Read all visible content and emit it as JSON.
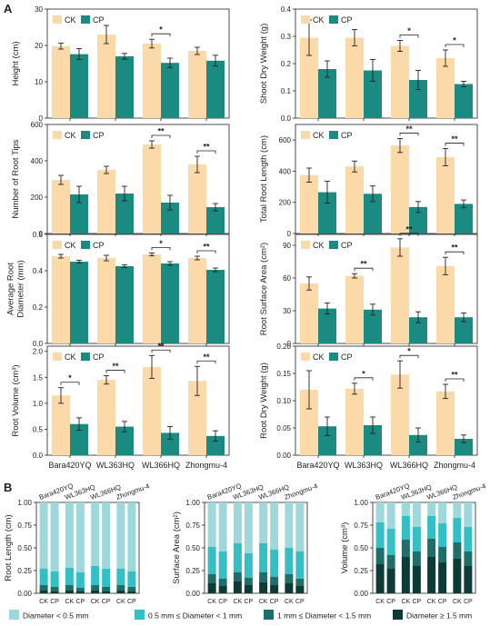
{
  "colors": {
    "ck": "#FCD9A8",
    "cp": "#1B8A80",
    "frame": "#222222",
    "d1": "#9ED8DA",
    "d2": "#34BFC4",
    "d3": "#1F6F68",
    "d4": "#0E3B35"
  },
  "panel_labels": {
    "a": "A",
    "b": "B"
  },
  "legend_text": {
    "ck": "CK",
    "cp": "CP"
  },
  "chart_data": [
    {
      "id": "height",
      "type": "bar",
      "ylabel": "Height (cm)",
      "ylim": [
        0,
        30
      ],
      "yticks": [
        0,
        10,
        20,
        30
      ],
      "categories": [
        "Bara420YQ",
        "WL363HQ",
        "WL366HQ",
        "Zhongmu-4"
      ],
      "show_xticks": false,
      "series": [
        {
          "name": "CK",
          "values": [
            19.8,
            23.0,
            20.5,
            18.5
          ],
          "err": [
            0.8,
            2.5,
            1.2,
            1.0
          ]
        },
        {
          "name": "CP",
          "values": [
            17.6,
            17.0,
            15.2,
            15.8
          ],
          "err": [
            1.5,
            0.8,
            1.3,
            1.5
          ]
        }
      ],
      "annotations": [
        {
          "category": "WL366HQ",
          "text": "*"
        }
      ]
    },
    {
      "id": "shoot-dry-weight",
      "type": "bar",
      "ylabel": "Shoot Dry Weight (g)",
      "ylim": [
        0,
        0.4
      ],
      "yticks": [
        0.0,
        0.1,
        0.2,
        0.3,
        0.4
      ],
      "ytick_decimals": 1,
      "categories": [
        "Bara420YQ",
        "WL363HQ",
        "WL366HQ",
        "Zhongmu-4"
      ],
      "show_xticks": false,
      "series": [
        {
          "name": "CK",
          "values": [
            0.295,
            0.295,
            0.265,
            0.22
          ],
          "err": [
            0.065,
            0.03,
            0.02,
            0.03
          ]
        },
        {
          "name": "CP",
          "values": [
            0.18,
            0.175,
            0.14,
            0.125
          ],
          "err": [
            0.03,
            0.04,
            0.035,
            0.01
          ]
        }
      ],
      "annotations": [
        {
          "category": "WL366HQ",
          "text": "*"
        },
        {
          "category": "Zhongmu-4",
          "text": "*"
        }
      ]
    },
    {
      "id": "number-of-root-tips",
      "type": "bar",
      "ylabel": "Number of Root Tips",
      "ylim": [
        0,
        600
      ],
      "yticks": [
        0,
        200,
        400,
        600
      ],
      "categories": [
        "Bara420YQ",
        "WL363HQ",
        "WL366HQ",
        "Zhongmu-4"
      ],
      "show_xticks": false,
      "series": [
        {
          "name": "CK",
          "values": [
            295,
            350,
            490,
            380
          ],
          "err": [
            25,
            20,
            20,
            45
          ]
        },
        {
          "name": "CP",
          "values": [
            215,
            220,
            170,
            145
          ],
          "err": [
            45,
            40,
            40,
            20
          ]
        }
      ],
      "annotations": [
        {
          "category": "WL366HQ",
          "text": "**"
        },
        {
          "category": "Zhongmu-4",
          "text": "**"
        }
      ]
    },
    {
      "id": "total-root-length",
      "type": "bar",
      "ylabel": "Total Root Length (cm)",
      "ylim": [
        0,
        700
      ],
      "yticks": [
        0,
        200,
        400,
        600
      ],
      "categories": [
        "Bara420YQ",
        "WL363HQ",
        "WL366HQ",
        "Zhongmu-4"
      ],
      "show_xticks": false,
      "series": [
        {
          "name": "CK",
          "values": [
            375,
            430,
            565,
            490
          ],
          "err": [
            45,
            35,
            45,
            55
          ]
        },
        {
          "name": "CP",
          "values": [
            265,
            255,
            170,
            190
          ],
          "err": [
            70,
            50,
            35,
            25
          ]
        }
      ],
      "annotations": [
        {
          "category": "WL366HQ",
          "text": "**"
        },
        {
          "category": "Zhongmu-4",
          "text": "**"
        }
      ]
    },
    {
      "id": "average-root-diameter",
      "type": "bar",
      "ylabel": [
        "Average Root",
        "Diameter (mm)"
      ],
      "ylim": [
        0,
        0.6
      ],
      "yticks": [
        0.0,
        0.2,
        0.4,
        0.6
      ],
      "ytick_decimals": 1,
      "categories": [
        "Bara420YQ",
        "WL363HQ",
        "WL366HQ",
        "Zhongmu-4"
      ],
      "show_xticks": false,
      "series": [
        {
          "name": "CK",
          "values": [
            0.48,
            0.47,
            0.49,
            0.47
          ],
          "err": [
            0.01,
            0.015,
            0.008,
            0.01
          ]
        },
        {
          "name": "CP",
          "values": [
            0.45,
            0.425,
            0.44,
            0.405
          ],
          "err": [
            0.008,
            0.008,
            0.01,
            0.01
          ]
        }
      ],
      "annotations": [
        {
          "category": "WL366HQ",
          "text": "*"
        },
        {
          "category": "Zhongmu-4",
          "text": "**"
        }
      ]
    },
    {
      "id": "root-surface-area",
      "type": "bar",
      "ylabel": "Root Surface Area (cm²)",
      "ylim": [
        0,
        100
      ],
      "yticks": [
        0,
        30,
        60,
        90
      ],
      "categories": [
        "Bara420YQ",
        "WL363HQ",
        "WL366HQ",
        "Zhongmu-4"
      ],
      "show_xticks": false,
      "series": [
        {
          "name": "CK",
          "values": [
            55,
            62,
            88,
            71
          ],
          "err": [
            6,
            2,
            8,
            8
          ]
        },
        {
          "name": "CP",
          "values": [
            32,
            31,
            24,
            24
          ],
          "err": [
            5,
            5,
            5,
            4
          ]
        }
      ],
      "annotations": [
        {
          "category": "WL363HQ",
          "text": "**"
        },
        {
          "category": "WL366HQ",
          "text": "**"
        },
        {
          "category": "Zhongmu-4",
          "text": "**"
        }
      ]
    },
    {
      "id": "root-volume",
      "type": "bar",
      "ylabel": "Root Volume (cm³)",
      "ylim": [
        0,
        2.1
      ],
      "yticks": [
        0.0,
        0.5,
        1.0,
        1.5,
        2.0
      ],
      "ytick_decimals": 1,
      "categories": [
        "Bara420YQ",
        "WL363HQ",
        "WL366HQ",
        "Zhongmu-4"
      ],
      "show_xticks": true,
      "series": [
        {
          "name": "CK",
          "values": [
            1.15,
            1.45,
            1.7,
            1.43
          ],
          "err": [
            0.15,
            0.08,
            0.22,
            0.28
          ]
        },
        {
          "name": "CP",
          "values": [
            0.6,
            0.55,
            0.43,
            0.37
          ],
          "err": [
            0.12,
            0.1,
            0.12,
            0.1
          ]
        }
      ],
      "annotations": [
        {
          "category": "Bara420YQ",
          "text": "*"
        },
        {
          "category": "WL363HQ",
          "text": "**"
        },
        {
          "category": "WL366HQ",
          "text": "**"
        },
        {
          "category": "Zhongmu-4",
          "text": "**"
        }
      ]
    },
    {
      "id": "root-dry-weight",
      "type": "bar",
      "ylabel": "Root Dry Weight (g)",
      "ylim": [
        0,
        0.2
      ],
      "yticks": [
        0.0,
        0.05,
        0.1,
        0.15,
        0.2
      ],
      "ytick_decimals": 2,
      "categories": [
        "Bara420YQ",
        "WL363HQ",
        "WL366HQ",
        "Zhongmu-4"
      ],
      "show_xticks": true,
      "series": [
        {
          "name": "CK",
          "values": [
            0.12,
            0.122,
            0.148,
            0.117
          ],
          "err": [
            0.035,
            0.01,
            0.025,
            0.013
          ]
        },
        {
          "name": "CP",
          "values": [
            0.053,
            0.055,
            0.037,
            0.03
          ],
          "err": [
            0.017,
            0.015,
            0.013,
            0.007
          ]
        }
      ],
      "annotations": [
        {
          "category": "WL363HQ",
          "text": "*"
        },
        {
          "category": "WL366HQ",
          "text": "*"
        },
        {
          "category": "Zhongmu-4",
          "text": "**"
        }
      ]
    },
    {
      "id": "root-length-proportion",
      "type": "bar",
      "stacked": true,
      "ylabel": "Root Length (cm)",
      "ylim": [
        0,
        1
      ],
      "yticks": [
        0.0,
        0.25,
        0.5,
        0.75,
        1.0
      ],
      "ytick_decimals": 2,
      "categories": [
        "Bara420YQ",
        "WL363HQ",
        "WL366HQ",
        "Zhongmu-4"
      ],
      "x_sublabels": [
        "CK",
        "CP"
      ],
      "bars": [
        [
          0.03,
          0.06,
          0.18,
          0.73
        ],
        [
          0.02,
          0.05,
          0.17,
          0.76
        ],
        [
          0.03,
          0.06,
          0.19,
          0.72
        ],
        [
          0.02,
          0.04,
          0.17,
          0.77
        ],
        [
          0.03,
          0.06,
          0.21,
          0.7
        ],
        [
          0.02,
          0.05,
          0.2,
          0.73
        ],
        [
          0.03,
          0.06,
          0.18,
          0.73
        ],
        [
          0.02,
          0.05,
          0.17,
          0.76
        ]
      ]
    },
    {
      "id": "surface-area-proportion",
      "type": "bar",
      "stacked": true,
      "ylabel": "Surface Area (cm²)",
      "ylim": [
        0,
        1
      ],
      "yticks": [
        0.0,
        0.25,
        0.5,
        0.75,
        1.0
      ],
      "ytick_decimals": 2,
      "categories": [
        "Bara420YQ",
        "WL363HQ",
        "WL366HQ",
        "Zhongmu-4"
      ],
      "x_sublabels": [
        "CK",
        "CP"
      ],
      "bars": [
        [
          0.11,
          0.1,
          0.3,
          0.49
        ],
        [
          0.08,
          0.08,
          0.3,
          0.54
        ],
        [
          0.13,
          0.1,
          0.32,
          0.45
        ],
        [
          0.09,
          0.08,
          0.27,
          0.56
        ],
        [
          0.12,
          0.11,
          0.32,
          0.45
        ],
        [
          0.09,
          0.09,
          0.3,
          0.52
        ],
        [
          0.11,
          0.1,
          0.29,
          0.5
        ],
        [
          0.08,
          0.08,
          0.3,
          0.54
        ]
      ]
    },
    {
      "id": "volume-proportion",
      "type": "bar",
      "stacked": true,
      "ylabel": "Volume (cm³)",
      "ylim": [
        0,
        1
      ],
      "yticks": [
        0.0,
        0.25,
        0.5,
        0.75,
        1.0
      ],
      "ytick_decimals": 2,
      "categories": [
        "Bara420YQ",
        "WL363HQ",
        "WL366HQ",
        "Zhongmu-4"
      ],
      "x_sublabels": [
        "CK",
        "CP"
      ],
      "bars": [
        [
          0.32,
          0.18,
          0.28,
          0.22
        ],
        [
          0.27,
          0.15,
          0.29,
          0.29
        ],
        [
          0.4,
          0.19,
          0.26,
          0.15
        ],
        [
          0.3,
          0.16,
          0.27,
          0.27
        ],
        [
          0.4,
          0.2,
          0.25,
          0.15
        ],
        [
          0.34,
          0.17,
          0.26,
          0.23
        ],
        [
          0.38,
          0.18,
          0.27,
          0.17
        ],
        [
          0.3,
          0.16,
          0.27,
          0.27
        ]
      ]
    }
  ],
  "diameter_legend": [
    {
      "label": "Diameter < 0.5 mm",
      "color": "#9ED8DA"
    },
    {
      "label": "0.5 mm ≤ Diameter < 1 mm",
      "color": "#34BFC4"
    },
    {
      "label": "1 mm ≤ Diameter < 1.5 mm",
      "color": "#1F6F68"
    },
    {
      "label": "Diameter ≥ 1.5 mm",
      "color": "#0E3B35"
    }
  ]
}
